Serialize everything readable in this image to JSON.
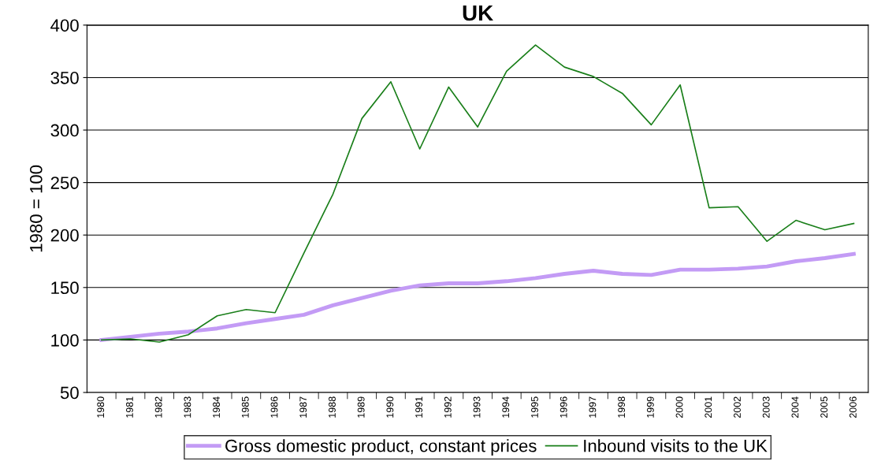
{
  "chart_data": {
    "type": "line",
    "title": "UK",
    "ylabel": "1980 = 100",
    "categories": [
      "1980",
      "1981",
      "1982",
      "1983",
      "1984",
      "1985",
      "1986",
      "1987",
      "1988",
      "1989",
      "1990",
      "1991",
      "1992",
      "1993",
      "1994",
      "1995",
      "1996",
      "1997",
      "1998",
      "1999",
      "2000",
      "2001",
      "2002",
      "2003",
      "2004",
      "2005",
      "2006"
    ],
    "series": [
      {
        "name": "Gross domestic product, constant prices",
        "color": "#c39bf5",
        "values": [
          100,
          103,
          106,
          108,
          111,
          116,
          120,
          124,
          133,
          140,
          147,
          152,
          154,
          154,
          156,
          159,
          163,
          166,
          163,
          162,
          167,
          167,
          168,
          170,
          175,
          178,
          182
        ]
      },
      {
        "name": "Inbound visits to the UK",
        "color": "#1a7f1a",
        "values": [
          100,
          101,
          98,
          105,
          123,
          129,
          126,
          183,
          239,
          311,
          346,
          282,
          341,
          303,
          356,
          381,
          360,
          351,
          335,
          305,
          343,
          226,
          227,
          194,
          214,
          205,
          211
        ]
      }
    ],
    "ylim": [
      50,
      400
    ],
    "yticks": [
      50,
      100,
      150,
      200,
      250,
      300,
      350,
      400
    ],
    "grid": "y",
    "legend": "bottom",
    "marker": "none",
    "line_style": "solid"
  }
}
